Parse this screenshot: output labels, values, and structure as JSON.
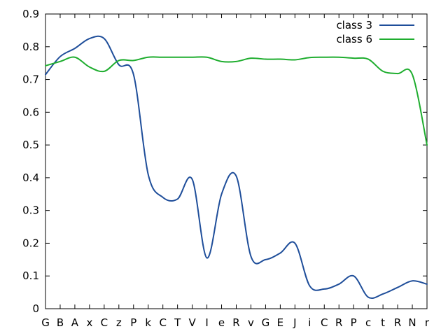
{
  "chart_data": {
    "type": "line",
    "title": "",
    "xlabel": "",
    "ylabel": "",
    "categories": [
      "G",
      "B",
      "A",
      "x",
      "C",
      "z",
      "P",
      "k",
      "C",
      "T",
      "V",
      "I",
      "e",
      "R",
      "v",
      "G",
      "E",
      "J",
      "i",
      "C",
      "R",
      "P",
      "c",
      "t",
      "R",
      "N",
      "r"
    ],
    "ylim": [
      0,
      0.9
    ],
    "yticks": [
      0,
      0.1,
      0.2,
      0.3,
      0.4,
      0.5,
      0.6,
      0.7,
      0.8,
      0.9
    ],
    "ytick_labels": [
      "0",
      "0.1",
      "0.2",
      "0.3",
      "0.4",
      "0.5",
      "0.6",
      "0.7",
      "0.8",
      "0.9"
    ],
    "grid": false,
    "legend_position": "top-right",
    "series": [
      {
        "name": "class 3",
        "color": "#1f4e9a",
        "values": [
          0.715,
          0.77,
          0.795,
          0.825,
          0.825,
          0.745,
          0.715,
          0.41,
          0.34,
          0.335,
          0.395,
          0.155,
          0.35,
          0.405,
          0.16,
          0.15,
          0.17,
          0.2,
          0.07,
          0.06,
          0.075,
          0.1,
          0.035,
          0.045,
          0.065,
          0.085,
          0.075
        ]
      },
      {
        "name": "class 6",
        "color": "#1ead2e",
        "values": [
          0.742,
          0.755,
          0.768,
          0.738,
          0.725,
          0.758,
          0.758,
          0.768,
          0.768,
          0.768,
          0.768,
          0.768,
          0.755,
          0.755,
          0.765,
          0.762,
          0.762,
          0.76,
          0.767,
          0.768,
          0.768,
          0.765,
          0.762,
          0.725,
          0.718,
          0.715,
          0.5
        ]
      }
    ]
  }
}
